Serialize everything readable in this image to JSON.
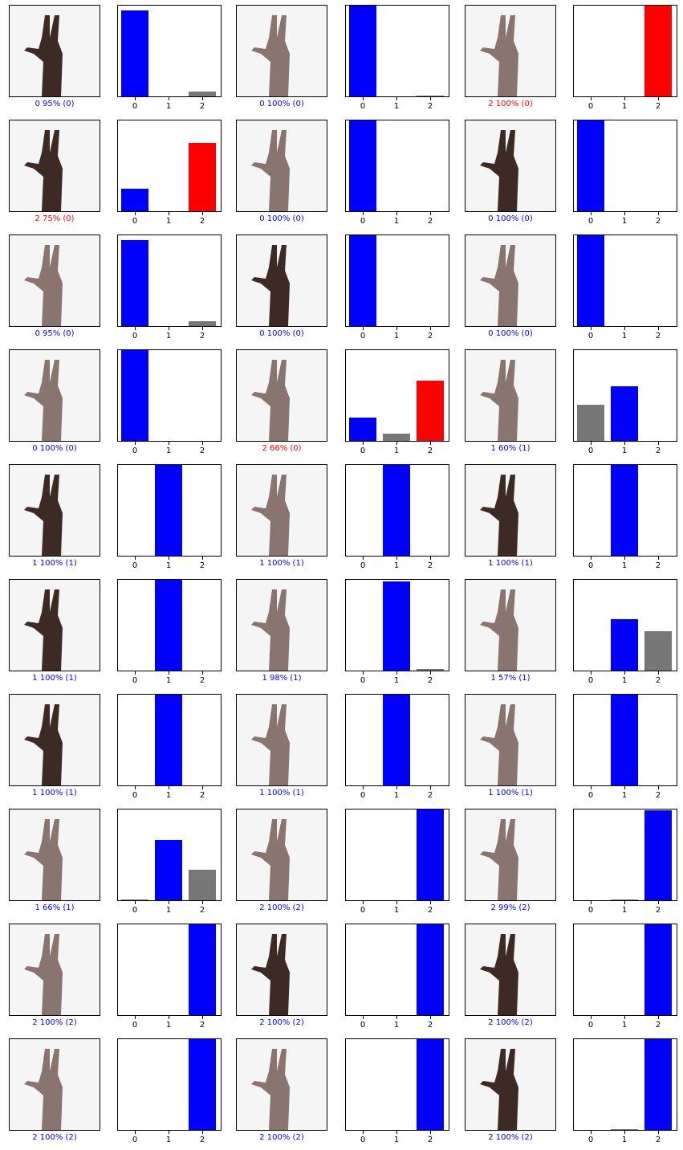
{
  "colors": {
    "correct": "#0000ff",
    "incorrect": "#ff0000",
    "other_bar": "#777777",
    "caption_correct": "#0000ff",
    "caption_incorrect": "#ff0000"
  },
  "chart_data": {
    "type": "bar",
    "categories": [
      "0",
      "1",
      "2"
    ],
    "ylim": [
      0,
      1
    ],
    "grid": false,
    "samples": [
      {
        "caption": "0 95% (0)",
        "pred": 0,
        "true": 0,
        "values": [
          0.95,
          0.0,
          0.05
        ],
        "skin": "dark"
      },
      {
        "caption": "0 100% (0)",
        "pred": 0,
        "true": 0,
        "values": [
          1.0,
          0.0,
          0.01
        ],
        "skin": "medium"
      },
      {
        "caption": "2 100% (0)",
        "pred": 2,
        "true": 0,
        "values": [
          0.0,
          0.0,
          1.0
        ],
        "skin": "medium"
      },
      {
        "caption": "2 75% (0)",
        "pred": 2,
        "true": 0,
        "values": [
          0.25,
          0.0,
          0.75
        ],
        "skin": "dark"
      },
      {
        "caption": "0 100% (0)",
        "pred": 0,
        "true": 0,
        "values": [
          1.0,
          0.0,
          0.0
        ],
        "skin": "medium"
      },
      {
        "caption": "0 100% (0)",
        "pred": 0,
        "true": 0,
        "values": [
          1.0,
          0.0,
          0.0
        ],
        "skin": "dark"
      },
      {
        "caption": "0 95% (0)",
        "pred": 0,
        "true": 0,
        "values": [
          0.95,
          0.0,
          0.05
        ],
        "skin": "medium"
      },
      {
        "caption": "0 100% (0)",
        "pred": 0,
        "true": 0,
        "values": [
          1.0,
          0.0,
          0.0
        ],
        "skin": "dark"
      },
      {
        "caption": "0 100% (0)",
        "pred": 0,
        "true": 0,
        "values": [
          1.0,
          0.0,
          0.0
        ],
        "skin": "medium"
      },
      {
        "caption": "0 100% (0)",
        "pred": 0,
        "true": 0,
        "values": [
          1.0,
          0.0,
          0.0
        ],
        "skin": "medium"
      },
      {
        "caption": "2 66% (0)",
        "pred": 2,
        "true": 0,
        "values": [
          0.26,
          0.08,
          0.66
        ],
        "skin": "medium"
      },
      {
        "caption": "1 60% (1)",
        "pred": 1,
        "true": 1,
        "values": [
          0.4,
          0.6,
          0.0
        ],
        "skin": "medium"
      },
      {
        "caption": "1 100% (1)",
        "pred": 1,
        "true": 1,
        "values": [
          0.0,
          1.0,
          0.0
        ],
        "skin": "dark"
      },
      {
        "caption": "1 100% (1)",
        "pred": 1,
        "true": 1,
        "values": [
          0.0,
          1.0,
          0.0
        ],
        "skin": "medium"
      },
      {
        "caption": "1 100% (1)",
        "pred": 1,
        "true": 1,
        "values": [
          0.0,
          1.0,
          0.0
        ],
        "skin": "dark"
      },
      {
        "caption": "1 100% (1)",
        "pred": 1,
        "true": 1,
        "values": [
          0.0,
          1.0,
          0.0
        ],
        "skin": "dark"
      },
      {
        "caption": "1 98% (1)",
        "pred": 1,
        "true": 1,
        "values": [
          0.0,
          0.98,
          0.02
        ],
        "skin": "medium"
      },
      {
        "caption": "1 57% (1)",
        "pred": 1,
        "true": 1,
        "values": [
          0.0,
          0.57,
          0.43
        ],
        "skin": "medium"
      },
      {
        "caption": "1 100% (1)",
        "pred": 1,
        "true": 1,
        "values": [
          0.0,
          1.0,
          0.0
        ],
        "skin": "dark"
      },
      {
        "caption": "1 100% (1)",
        "pred": 1,
        "true": 1,
        "values": [
          0.0,
          1.0,
          0.0
        ],
        "skin": "medium"
      },
      {
        "caption": "1 100% (1)",
        "pred": 1,
        "true": 1,
        "values": [
          0.0,
          1.0,
          0.0
        ],
        "skin": "medium"
      },
      {
        "caption": "1 66% (1)",
        "pred": 1,
        "true": 1,
        "values": [
          0.01,
          0.66,
          0.34
        ],
        "skin": "medium"
      },
      {
        "caption": "2 100% (2)",
        "pred": 2,
        "true": 2,
        "values": [
          0.0,
          0.0,
          1.0
        ],
        "skin": "medium"
      },
      {
        "caption": "2 99% (2)",
        "pred": 2,
        "true": 2,
        "values": [
          0.0,
          0.01,
          0.99
        ],
        "skin": "medium"
      },
      {
        "caption": "2 100% (2)",
        "pred": 2,
        "true": 2,
        "values": [
          0.0,
          0.0,
          1.0
        ],
        "skin": "medium"
      },
      {
        "caption": "2 100% (2)",
        "pred": 2,
        "true": 2,
        "values": [
          0.0,
          0.0,
          1.0
        ],
        "skin": "dark"
      },
      {
        "caption": "2 100% (2)",
        "pred": 2,
        "true": 2,
        "values": [
          0.0,
          0.0,
          1.0
        ],
        "skin": "dark"
      },
      {
        "caption": "2 100% (2)",
        "pred": 2,
        "true": 2,
        "values": [
          0.0,
          0.0,
          1.0
        ],
        "skin": "medium"
      },
      {
        "caption": "2 100% (2)",
        "pred": 2,
        "true": 2,
        "values": [
          0.0,
          0.0,
          1.0
        ],
        "skin": "medium"
      },
      {
        "caption": "2 100% (2)",
        "pred": 2,
        "true": 2,
        "values": [
          0.0,
          0.01,
          1.0
        ],
        "skin": "dark"
      }
    ]
  }
}
